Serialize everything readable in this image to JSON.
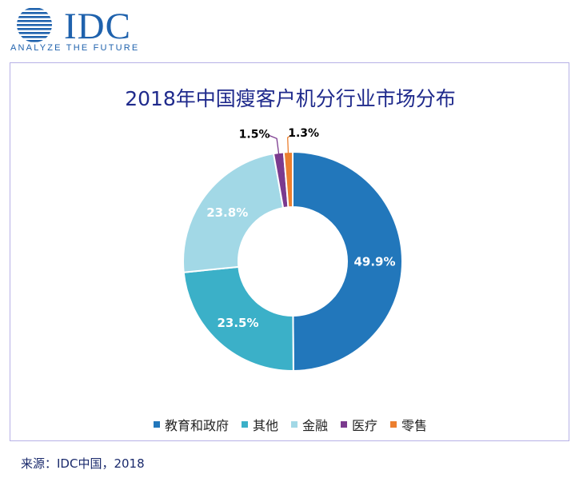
{
  "logo": {
    "brand": "IDC",
    "tagline": "ANALYZE THE FUTURE",
    "color": "#1f62ad"
  },
  "chart_data": {
    "type": "pie",
    "title": "2018年中国瘦客户机分行业市场分布",
    "hole": true,
    "series": [
      {
        "name": "教育和政府",
        "value": 49.9,
        "label": "49.9%",
        "color": "#2277bb"
      },
      {
        "name": "其他",
        "value": 23.5,
        "label": "23.5%",
        "color": "#3bb0c8"
      },
      {
        "name": "金融",
        "value": 23.8,
        "label": "23.8%",
        "color": "#a2d8e6"
      },
      {
        "name": "医疗",
        "value": 1.5,
        "label": "1.5%",
        "color": "#7b3a8e"
      },
      {
        "name": "零售",
        "value": 1.3,
        "label": "1.3%",
        "color": "#ec7f2f"
      }
    ],
    "legend_position": "bottom"
  },
  "source": "来源：IDC中国，2018"
}
